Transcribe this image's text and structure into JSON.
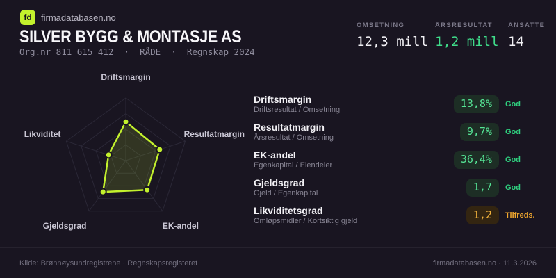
{
  "header": {
    "logo_text": "fd",
    "brand": "firmadatabasen.no",
    "title": "SILVER BYGG & MONTASJE AS",
    "meta": "Org.nr 811 615 412  ·  RÅDE  ·  Regnskap 2024"
  },
  "stats": [
    {
      "label": "OMSETNING",
      "value": "12,3 mill",
      "tone": "white"
    },
    {
      "label": "ÅRSRESULTAT",
      "value": "1,2 mill",
      "tone": "green"
    },
    {
      "label": "ANSATTE",
      "value": "14",
      "tone": "white"
    }
  ],
  "metrics": {
    "rows": [
      {
        "title": "Driftsmargin",
        "formula": "Driftsresultat / Omsetning",
        "value": "13,8%",
        "status": "God",
        "tone": "green"
      },
      {
        "title": "Resultatmargin",
        "formula": "Årsresultat / Omsetning",
        "value": "9,7%",
        "status": "God",
        "tone": "green"
      },
      {
        "title": "EK-andel",
        "formula": "Egenkapital / Eiendeler",
        "value": "36,4%",
        "status": "God",
        "tone": "green"
      },
      {
        "title": "Gjeldsgrad",
        "formula": "Gjeld / Egenkapital",
        "value": "1,7",
        "status": "God",
        "tone": "green"
      },
      {
        "title": "Likviditetsgrad",
        "formula": "Omløpsmidler / Kortsiktig gjeld",
        "value": "1,2",
        "status": "Tilfreds.",
        "tone": "amber"
      }
    ]
  },
  "chart_data": {
    "type": "radar",
    "title": "",
    "axes": [
      "Driftsmargin",
      "Resultatmargin",
      "EK-andel",
      "Gjeldsgrad",
      "Likviditet"
    ],
    "series": [
      {
        "name": "Silver Bygg & Montasje AS",
        "values_normalized": [
          0.62,
          0.57,
          0.58,
          0.62,
          0.29
        ]
      }
    ],
    "axis_metric_values": [
      "13,8%",
      "9,7%",
      "36,4%",
      "1,7",
      "1,2"
    ],
    "rings": 4,
    "range_normalized": [
      0,
      1
    ],
    "grid": true,
    "legend": "none",
    "stroke_color": "#c3f12d",
    "fill_color": "rgba(195,241,45,0.15)",
    "grid_color": "#2b2837",
    "label_color": "#cbc8d6"
  },
  "footer": {
    "source": "Kilde: Brønnøysundregistrene · Regnskapsregisteret",
    "credit": "firmadatabasen.no · 11.3.2026"
  },
  "colors": {
    "background": "#191521",
    "accent_chartreuse": "#c3f12d",
    "positive_green": "#3fdc8a",
    "warning_amber": "#f0a72e"
  }
}
